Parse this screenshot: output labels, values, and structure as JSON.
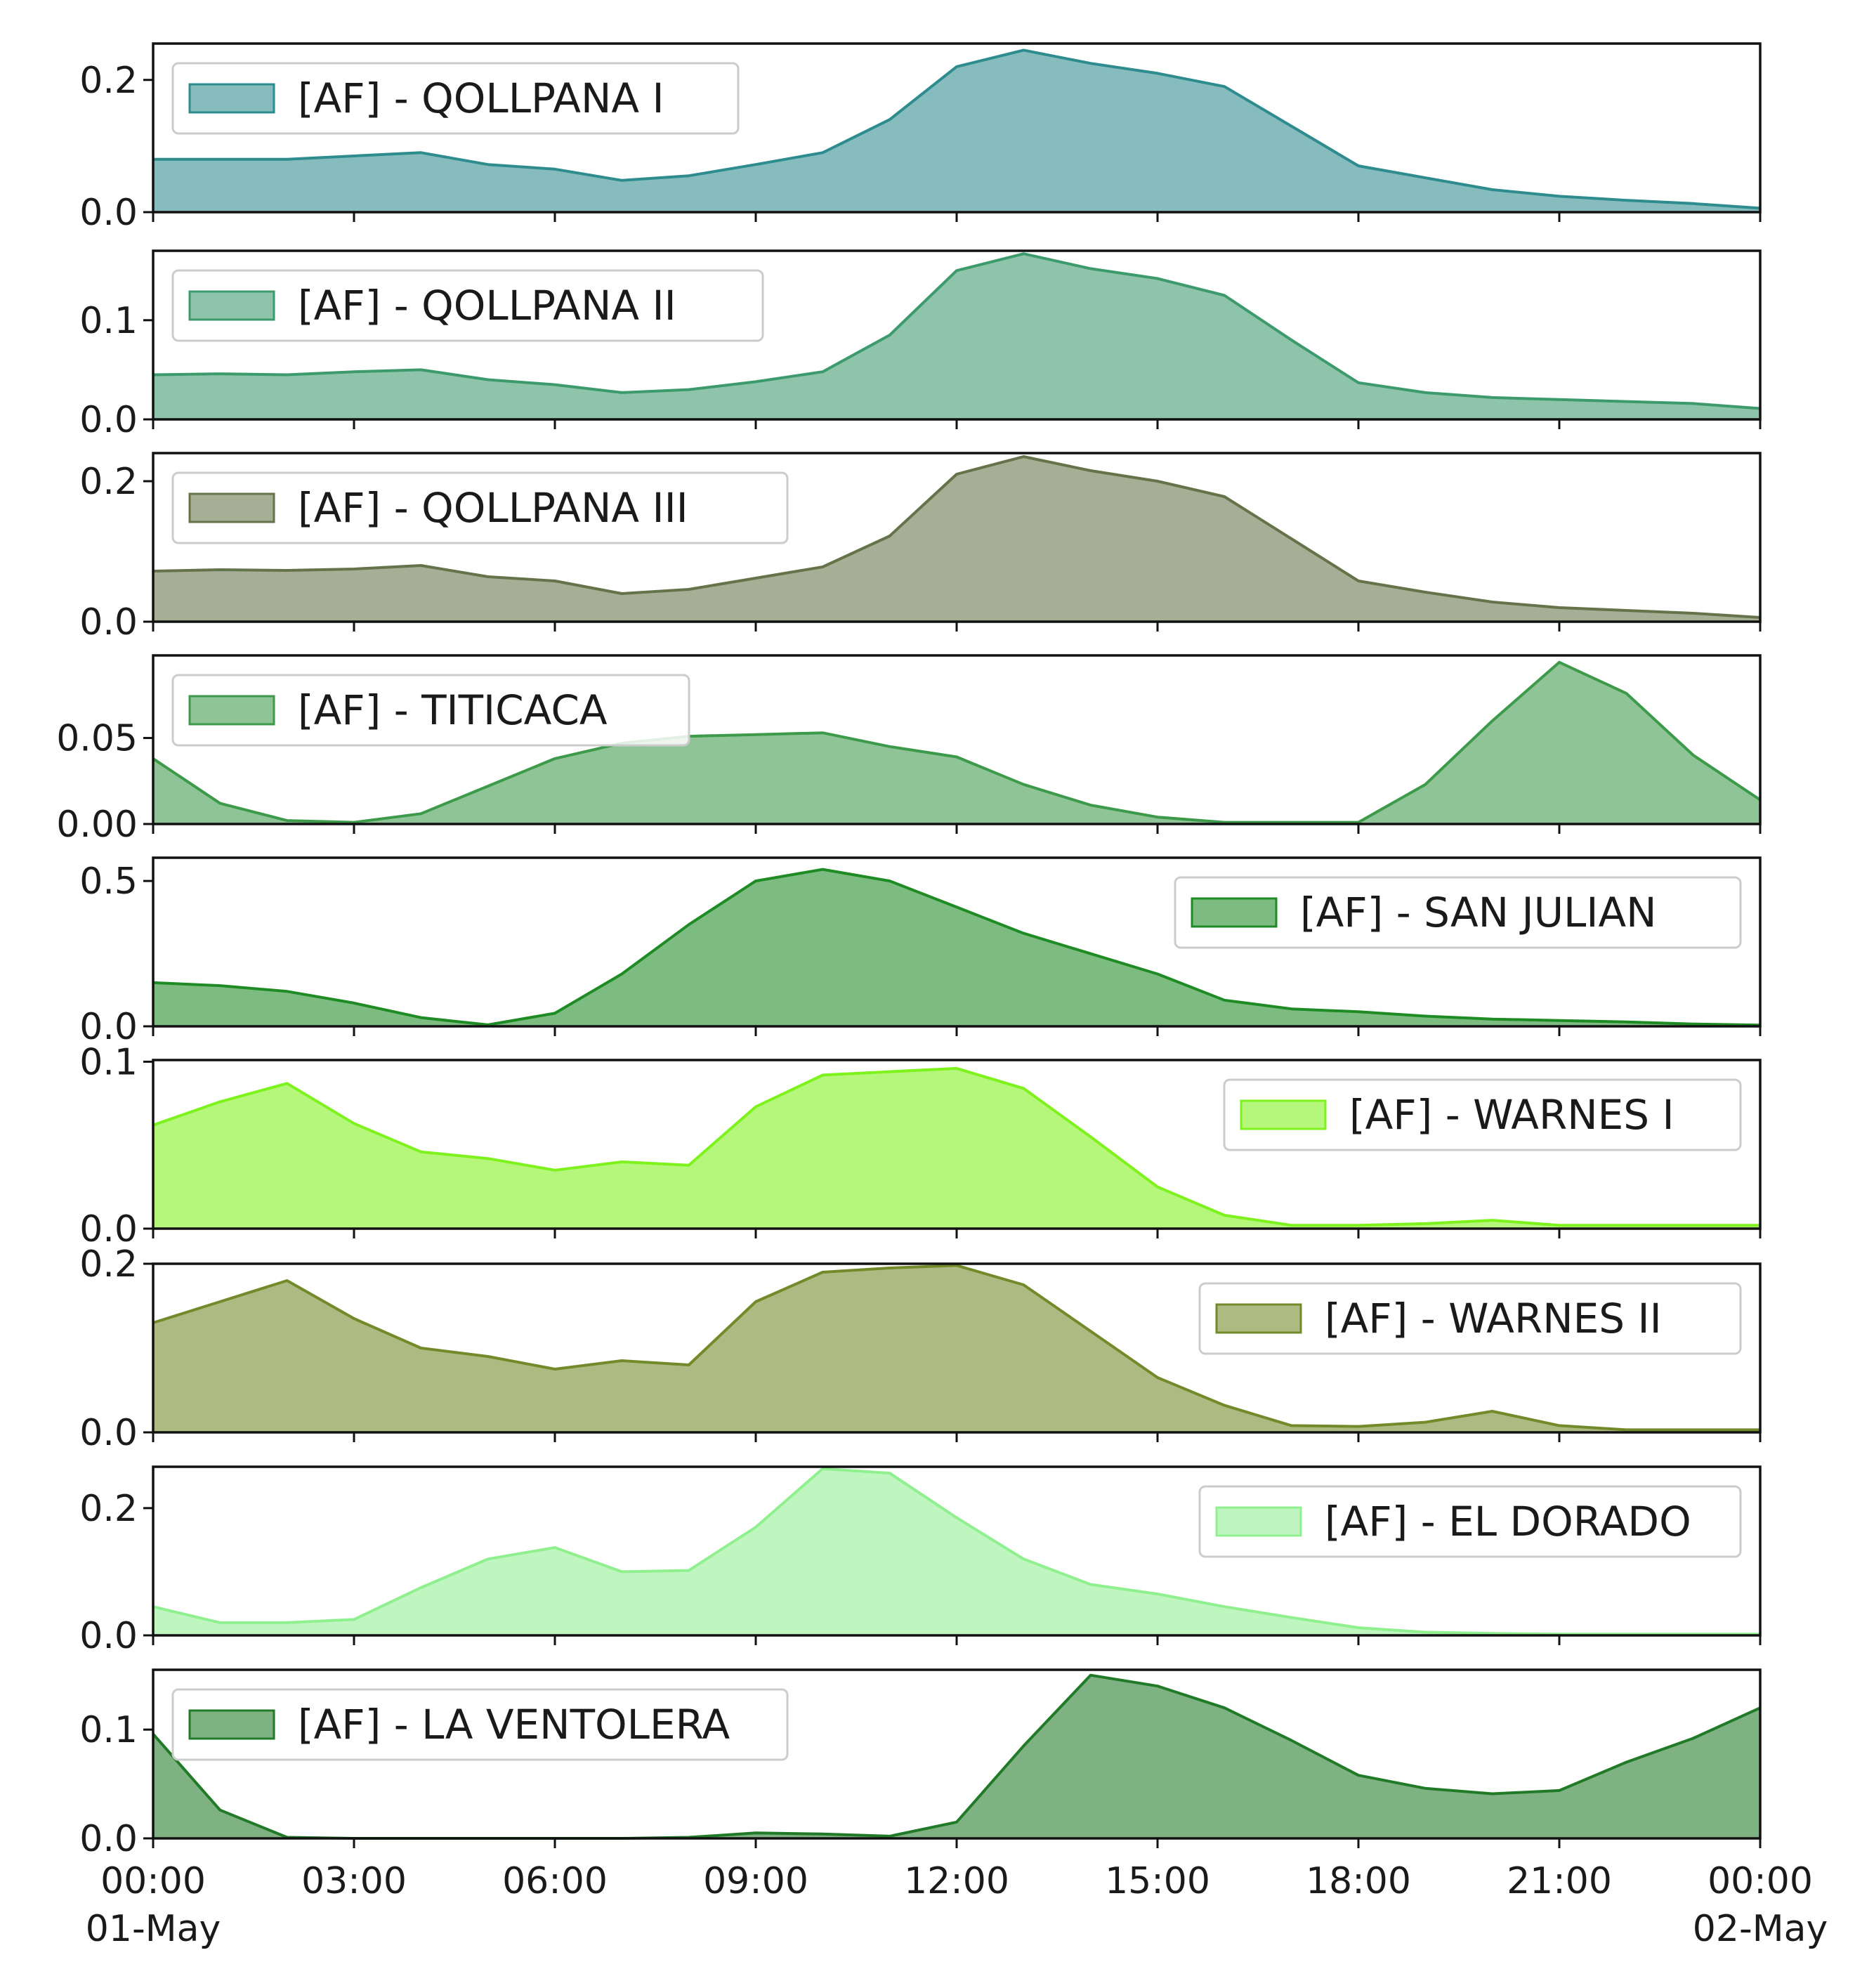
{
  "chart_data": {
    "type": "area",
    "layout": "stacked-subplots",
    "shared_x": true,
    "x_hours": [
      0,
      1,
      2,
      3,
      4,
      5,
      6,
      7,
      8,
      9,
      10,
      11,
      12,
      13,
      14,
      15,
      16,
      17,
      18,
      19,
      20,
      21,
      22,
      23,
      24
    ],
    "x_range": [
      0,
      24
    ],
    "x_ticks": [
      {
        "hour": 0,
        "label": "00:00",
        "sublabel": "01-May"
      },
      {
        "hour": 3,
        "label": "03:00"
      },
      {
        "hour": 6,
        "label": "06:00"
      },
      {
        "hour": 9,
        "label": "09:00"
      },
      {
        "hour": 12,
        "label": "12:00"
      },
      {
        "hour": 15,
        "label": "15:00"
      },
      {
        "hour": 18,
        "label": "18:00"
      },
      {
        "hour": 21,
        "label": "21:00"
      },
      {
        "hour": 24,
        "label": "00:00",
        "sublabel": "02-May"
      }
    ],
    "series": [
      {
        "name": "[AF] - QOLLPANA I",
        "color": "#2e8b8e",
        "legend": "top-left",
        "ylim": [
          0,
          0.255
        ],
        "yticks": [
          {
            "v": 0,
            "label": "0.0"
          },
          {
            "v": 0.2,
            "label": "0.2"
          }
        ],
        "values": [
          0.08,
          0.08,
          0.08,
          0.085,
          0.09,
          0.072,
          0.065,
          0.048,
          0.055,
          0.072,
          0.09,
          0.14,
          0.22,
          0.245,
          0.225,
          0.21,
          0.19,
          0.13,
          0.07,
          0.052,
          0.034,
          0.024,
          0.018,
          0.013,
          0.006
        ]
      },
      {
        "name": "[AF] - QOLLPANA II",
        "color": "#3c9a6c",
        "legend": "top-left",
        "ylim": [
          0,
          0.17
        ],
        "yticks": [
          {
            "v": 0,
            "label": "0.0"
          },
          {
            "v": 0.1,
            "label": "0.1"
          }
        ],
        "values": [
          0.045,
          0.046,
          0.045,
          0.048,
          0.05,
          0.04,
          0.035,
          0.027,
          0.03,
          0.038,
          0.048,
          0.085,
          0.15,
          0.167,
          0.152,
          0.142,
          0.125,
          0.08,
          0.037,
          0.027,
          0.022,
          0.02,
          0.018,
          0.016,
          0.011
        ]
      },
      {
        "name": "[AF] - QOLLPANA III",
        "color": "#65734a",
        "legend": "top-left",
        "ylim": [
          0,
          0.24
        ],
        "yticks": [
          {
            "v": 0,
            "label": "0.0"
          },
          {
            "v": 0.2,
            "label": "0.2"
          }
        ],
        "values": [
          0.072,
          0.074,
          0.073,
          0.075,
          0.08,
          0.064,
          0.058,
          0.04,
          0.046,
          0.062,
          0.078,
          0.122,
          0.21,
          0.235,
          0.215,
          0.2,
          0.178,
          0.118,
          0.058,
          0.042,
          0.028,
          0.02,
          0.016,
          0.012,
          0.006
        ]
      },
      {
        "name": "[AF] - TITICACA",
        "color": "#3d9a4a",
        "legend": "top-left",
        "ylim": [
          0,
          0.098
        ],
        "yticks": [
          {
            "v": 0,
            "label": "0.00"
          },
          {
            "v": 0.05,
            "label": "0.05"
          }
        ],
        "values": [
          0.038,
          0.012,
          0.002,
          0.001,
          0.006,
          0.022,
          0.038,
          0.047,
          0.051,
          0.052,
          0.053,
          0.045,
          0.039,
          0.023,
          0.011,
          0.004,
          0.001,
          0.001,
          0.001,
          0.023,
          0.06,
          0.094,
          0.076,
          0.04,
          0.014
        ]
      },
      {
        "name": "[AF] - SAN JULIAN",
        "color": "#1f8b24",
        "legend": "top-right",
        "ylim": [
          0,
          0.58
        ],
        "yticks": [
          {
            "v": 0,
            "label": "0.0"
          },
          {
            "v": 0.5,
            "label": "0.5"
          }
        ],
        "values": [
          0.15,
          0.14,
          0.12,
          0.08,
          0.03,
          0.005,
          0.045,
          0.18,
          0.35,
          0.5,
          0.54,
          0.5,
          0.41,
          0.32,
          0.25,
          0.18,
          0.09,
          0.06,
          0.05,
          0.035,
          0.025,
          0.02,
          0.015,
          0.008,
          0.004
        ]
      },
      {
        "name": "[AF] - WARNES I",
        "color": "#7ef21c",
        "legend": "top-right",
        "ylim": [
          0,
          0.101
        ],
        "yticks": [
          {
            "v": 0,
            "label": "0.0"
          },
          {
            "v": 0.1,
            "label": "0.1"
          }
        ],
        "values": [
          0.062,
          0.076,
          0.087,
          0.063,
          0.046,
          0.042,
          0.035,
          0.04,
          0.038,
          0.073,
          0.092,
          0.094,
          0.096,
          0.084,
          0.055,
          0.025,
          0.008,
          0.002,
          0.002,
          0.003,
          0.005,
          0.002,
          0.002,
          0.002,
          0.002
        ]
      },
      {
        "name": "[AF] - WARNES II",
        "color": "#728a2a",
        "legend": "top-right",
        "ylim": [
          0,
          0.2
        ],
        "yticks": [
          {
            "v": 0,
            "label": "0.0"
          },
          {
            "v": 0.2,
            "label": "0.2"
          }
        ],
        "values": [
          0.13,
          0.155,
          0.18,
          0.135,
          0.1,
          0.09,
          0.075,
          0.085,
          0.08,
          0.155,
          0.19,
          0.195,
          0.198,
          0.175,
          0.12,
          0.065,
          0.032,
          0.008,
          0.007,
          0.012,
          0.025,
          0.008,
          0.003,
          0.003,
          0.003
        ]
      },
      {
        "name": "[AF] - EL DORADO",
        "color": "#90f090",
        "legend": "top-right",
        "ylim": [
          0,
          0.265
        ],
        "yticks": [
          {
            "v": 0,
            "label": "0.0"
          },
          {
            "v": 0.2,
            "label": "0.2"
          }
        ],
        "values": [
          0.045,
          0.02,
          0.02,
          0.025,
          0.075,
          0.12,
          0.138,
          0.1,
          0.102,
          0.17,
          0.262,
          0.255,
          0.185,
          0.12,
          0.08,
          0.065,
          0.045,
          0.028,
          0.012,
          0.005,
          0.003,
          0.002,
          0.002,
          0.002,
          0.002
        ]
      },
      {
        "name": "[AF] - LA VENTOLERA",
        "color": "#217a27",
        "legend": "top-left",
        "ylim": [
          0,
          0.155
        ],
        "yticks": [
          {
            "v": 0,
            "label": "0.0"
          },
          {
            "v": 0.1,
            "label": "0.1"
          }
        ],
        "values": [
          0.096,
          0.026,
          0.001,
          0.0,
          0.0,
          0.0,
          0.0,
          0.0,
          0.001,
          0.005,
          0.004,
          0.002,
          0.015,
          0.085,
          0.15,
          0.14,
          0.12,
          0.09,
          0.058,
          0.046,
          0.041,
          0.044,
          0.07,
          0.092,
          0.12
        ]
      }
    ]
  }
}
